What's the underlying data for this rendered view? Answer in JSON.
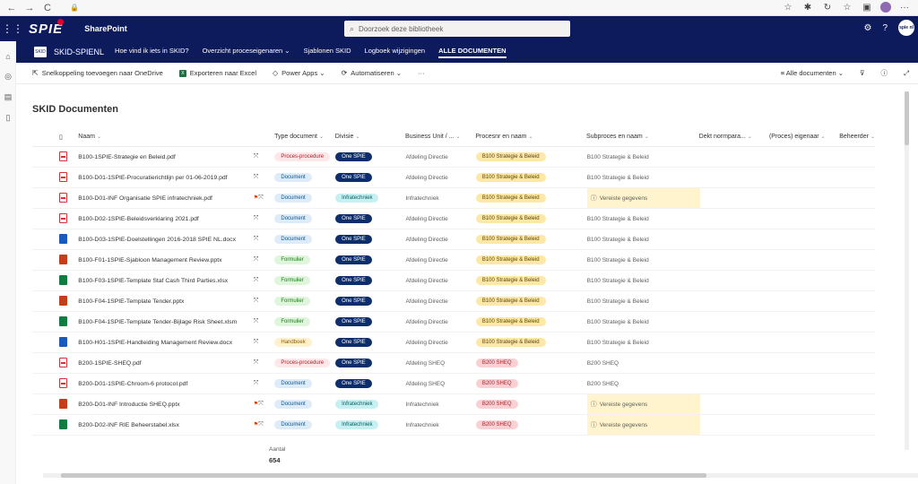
{
  "browser": {
    "back": "←",
    "fwd": "→",
    "refresh": "C",
    "lock": "🔒"
  },
  "suite": {
    "logo": "SPIE",
    "app_name": "SharePoint",
    "search_placeholder": "Doorzoek deze bibliotheek",
    "me_initials": "spie nl"
  },
  "site": {
    "title": "SKID-SPIENL",
    "nav": [
      "Hoe vind ik iets in SKID?",
      "Overzicht proceseigenaren ⌄",
      "Sjablonen SKID",
      "Logboek wijzigingen",
      "ALLE DOCUMENTEN"
    ]
  },
  "command": {
    "shortcut": "Snelkoppeling toevoegen naar OneDrive",
    "export": "Exporteren naar Excel",
    "power_apps": "Power Apps ⌄",
    "automate": "Automatiseren ⌄",
    "more": "···",
    "view": "Alle documenten ⌄"
  },
  "library": {
    "title": "SKID Documenten",
    "columns": [
      "Naam",
      "Type document",
      "Divisie",
      "Business Unit / ...",
      "Procesnr en naam",
      "Subproces en naam",
      "Dekt normpara...",
      "(Proces) eigenaar",
      "Beheerder"
    ],
    "rows": [
      {
        "ftype": "pdf",
        "name": "B100-1SPIE-Strategie en Beleid.pdf",
        "type": "Proces-procedure",
        "div": "One SPIE",
        "bu": "Afdeling Directie",
        "proc": "B100 Strategie & Beleid",
        "sub": "B100 Strategie & Beleid",
        "req": false,
        "flag": false
      },
      {
        "ftype": "pdf",
        "name": "B100-D01-1SPIE-Procuratierichtlijn per 01-06-2019.pdf",
        "type": "Document",
        "div": "One SPIE",
        "bu": "Afdeling Directie",
        "proc": "B100 Strategie & Beleid",
        "sub": "B100 Strategie & Beleid",
        "req": false,
        "flag": false
      },
      {
        "ftype": "pdf",
        "name": "B100-D01-INF Organisatie SPIE infratechniek.pdf",
        "type": "Document",
        "div": "Infratechniek",
        "bu": "Infratechniek",
        "proc": "B100 Strategie & Beleid",
        "sub": "Vereiste gegevens",
        "req": true,
        "flag": true
      },
      {
        "ftype": "pdf",
        "name": "B100-D02-1SPIE-Beleidsverklaring 2021.pdf",
        "type": "Document",
        "div": "One SPIE",
        "bu": "Afdeling Directie",
        "proc": "B100 Strategie & Beleid",
        "sub": "B100 Strategie & Beleid",
        "req": false,
        "flag": false
      },
      {
        "ftype": "word",
        "name": "B100-D03-1SPIE-Doelstellingen 2016-2018 SPIE NL.docx",
        "type": "Document",
        "div": "One SPIE",
        "bu": "Afdeling Directie",
        "proc": "B100 Strategie & Beleid",
        "sub": "B100 Strategie & Beleid",
        "req": false,
        "flag": false
      },
      {
        "ftype": "ppt",
        "name": "B100-F01-1SPIE-Sjabloon Management Review.pptx",
        "type": "Formulier",
        "div": "One SPIE",
        "bu": "Afdeling Directie",
        "proc": "B100 Strategie & Beleid",
        "sub": "B100 Strategie & Beleid",
        "req": false,
        "flag": false
      },
      {
        "ftype": "xls",
        "name": "B100-F03-1SPIE-Template Staf Cash Third Parties.xlsx",
        "type": "Formulier",
        "div": "One SPIE",
        "bu": "Afdeling Directie",
        "proc": "B100 Strategie & Beleid",
        "sub": "B100 Strategie & Beleid",
        "req": false,
        "flag": false
      },
      {
        "ftype": "ppt",
        "name": "B100-F04-1SPIE-Template Tender.pptx",
        "type": "Formulier",
        "div": "One SPIE",
        "bu": "Afdeling Directie",
        "proc": "B100 Strategie & Beleid",
        "sub": "B100 Strategie & Beleid",
        "req": false,
        "flag": false
      },
      {
        "ftype": "xls",
        "name": "B100-F04-1SPIE-Template Tender-Bijlage Risk Sheet.xlsm",
        "type": "Formulier",
        "div": "One SPIE",
        "bu": "Afdeling Directie",
        "proc": "B100 Strategie & Beleid",
        "sub": "B100 Strategie & Beleid",
        "req": false,
        "flag": false
      },
      {
        "ftype": "word",
        "name": "B100-H01-1SPIE-Handleiding Management Review.docx",
        "type": "Handboek",
        "div": "One SPIE",
        "bu": "Afdeling Directie",
        "proc": "B100 Strategie & Beleid",
        "sub": "B100 Strategie & Beleid",
        "req": false,
        "flag": false
      },
      {
        "ftype": "pdf",
        "name": "B200-1SPIE-SHEQ.pdf",
        "type": "Proces-procedure",
        "div": "One SPIE",
        "bu": "Afdeling SHEQ",
        "proc": "B200 SHEQ",
        "sub": "B200 SHEQ",
        "req": false,
        "flag": false
      },
      {
        "ftype": "pdf",
        "name": "B200-D01-1SPIE-Chroom-6 protocol.pdf",
        "type": "Document",
        "div": "One SPIE",
        "bu": "Afdeling SHEQ",
        "proc": "B200 SHEQ",
        "sub": "B200 SHEQ",
        "req": false,
        "flag": false
      },
      {
        "ftype": "ppt",
        "name": "B200-D01-INF Introductie SHEQ.pptx",
        "type": "Document",
        "div": "Infratechniek",
        "bu": "Infratechniek",
        "proc": "B200 SHEQ",
        "sub": "Vereiste gegevens",
        "req": true,
        "flag": true
      },
      {
        "ftype": "xls",
        "name": "B200-D02-INF RIE Beheerstabel.xlsx",
        "type": "Document",
        "div": "Infratechniek",
        "bu": "Infratechniek",
        "proc": "B200 SHEQ",
        "sub": "Vereiste gegevens",
        "req": true,
        "flag": true
      }
    ]
  },
  "footer": {
    "label": "Aantal",
    "count": "654"
  },
  "colors": {
    "suite_bg": "#0d1a5c",
    "proc_bg": "#fde7e9",
    "proc_fg": "#a4262c",
    "doc_bg": "#deecf9",
    "doc_fg": "#0f548c",
    "form_bg": "#dff6dd",
    "form_fg": "#107c10",
    "hb_bg": "#fff1cc",
    "hb_fg": "#8a5a00",
    "onespie_bg": "#0d2d6b",
    "onespie_fg": "#ffffff",
    "infra_bg": "#c7f0f3",
    "infra_fg": "#00605e",
    "b100_bg": "#fde8a8",
    "b100_fg": "#5c4500",
    "b200_bg": "#fbd0d5",
    "b200_fg": "#a4262c"
  }
}
